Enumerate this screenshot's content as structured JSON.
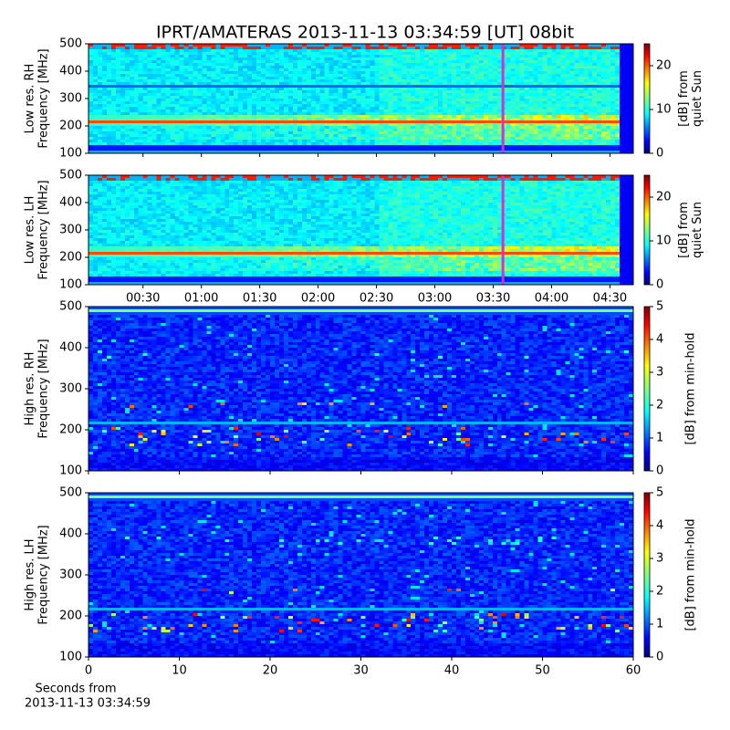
{
  "chart_data": [
    {
      "type": "heatmap",
      "title": "IPRT/AMATERAS 2013-11-13 03:34:59 [UT]   08bit",
      "colormap": "jet",
      "ylabel": [
        "Low res. RH",
        "Frequency [MHz]"
      ],
      "ylim": [
        100,
        500
      ],
      "yticks": [
        100,
        200,
        300,
        400,
        500
      ],
      "xlim": [
        2,
        282
      ],
      "marker_x": 215,
      "marker_color": "#d62fd6",
      "colorbar": {
        "label": [
          "[dB] from",
          "quiet Sun"
        ],
        "lim": [
          0,
          25
        ],
        "ticks": [
          0,
          10,
          20
        ]
      }
    },
    {
      "type": "heatmap",
      "colormap": "jet",
      "ylabel": [
        "Low res. LH",
        "Frequency [MHz]"
      ],
      "ylim": [
        100,
        500
      ],
      "yticks": [
        100,
        200,
        300,
        400,
        500
      ],
      "xlim": [
        2,
        282
      ],
      "marker_x": 215,
      "marker_color": "#d62fd6",
      "xticks": [
        {
          "value": 30,
          "label": "00:30"
        },
        {
          "value": 60,
          "label": "01:00"
        },
        {
          "value": 90,
          "label": "01:30"
        },
        {
          "value": 120,
          "label": "02:00"
        },
        {
          "value": 150,
          "label": "02:30"
        },
        {
          "value": 180,
          "label": "03:00"
        },
        {
          "value": 210,
          "label": "03:30"
        },
        {
          "value": 240,
          "label": "04:00"
        },
        {
          "value": 270,
          "label": "04:30"
        }
      ],
      "colorbar": {
        "label": [
          "[dB] from",
          "quiet Sun"
        ],
        "lim": [
          0,
          25
        ],
        "ticks": [
          0,
          10,
          20
        ]
      }
    },
    {
      "type": "heatmap",
      "colormap": "jet",
      "ylabel": [
        "High res. RH",
        "Frequency [MHz]"
      ],
      "ylim": [
        100,
        500
      ],
      "yticks": [
        100,
        200,
        300,
        400,
        500
      ],
      "xlim": [
        0,
        60
      ],
      "colorbar": {
        "label": [
          "[dB] from min-hold"
        ],
        "lim": [
          0,
          5
        ],
        "ticks": [
          0,
          1,
          2,
          3,
          4,
          5
        ]
      }
    },
    {
      "type": "heatmap",
      "colormap": "jet",
      "ylabel": [
        "High res. LH",
        "Frequency [MHz]"
      ],
      "ylim": [
        100,
        500
      ],
      "yticks": [
        100,
        200,
        300,
        400,
        500
      ],
      "xlim": [
        0,
        60
      ],
      "xticks": [
        0,
        10,
        20,
        30,
        40,
        50,
        60
      ],
      "xlabel": [
        "Seconds from",
        "2013-11-13 03:34:59"
      ],
      "colorbar": {
        "label": [
          "[dB] from min-hold"
        ],
        "lim": [
          0,
          5
        ],
        "ticks": [
          0,
          1,
          2,
          3,
          4,
          5
        ]
      }
    }
  ]
}
